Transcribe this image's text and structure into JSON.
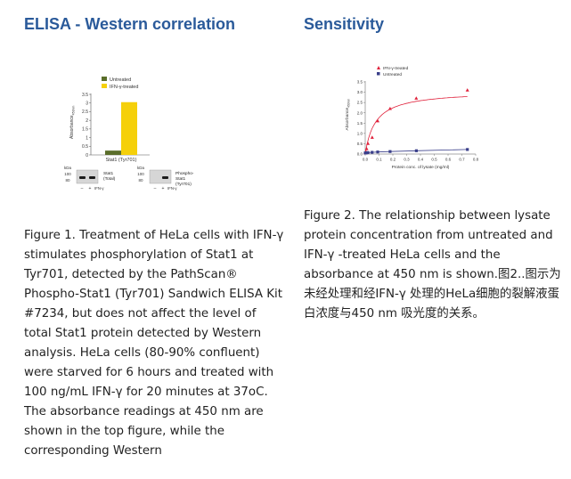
{
  "left": {
    "title": "ELISA - Western correlation",
    "caption": "Figure 1. Treatment of HeLa cells with IFN-γ stimulates phosphorylation of Stat1 at Tyr701, detected by the PathScan® Phospho-Stat1 (Tyr701) Sandwich ELISA Kit #7234, but does not affect the level of total Stat1 protein detected by Western analysis. HeLa cells (80-90% confluent) were starved for 6 hours and treated with 100 ng/mL IFN-γ for 20 minutes at 37oC. The absorbance readings at 450 nm are shown in the top figure, while the corresponding Western",
    "figure": {
      "ylabel_main": "Absorbance",
      "ylabel_sub": "450nm",
      "yticks": [
        "0",
        "0.5",
        "1",
        "1.5",
        "2",
        "2.5",
        "3",
        "3.5"
      ],
      "xlabel": "Stat1 (Tyr701)",
      "western": {
        "markers_left": [
          "kDa",
          "100",
          "80"
        ],
        "markers_right": [
          "kDa",
          "100",
          "80"
        ],
        "band_label_left": [
          "Stat1",
          "(Total)"
        ],
        "band_label_right": [
          "Phospho-",
          "Stat1",
          "(Tyr701)"
        ],
        "lane_signs": [
          "–",
          "+"
        ],
        "treatment": "IFN-γ"
      }
    }
  },
  "right": {
    "title": "Sensitivity",
    "caption": "Figure 2. The relationship between lysate protein concentration from untreated and IFN-γ -treated HeLa cells and the absorbance at 450 nm is shown.图2..图示为未经处理和经IFN-γ 处理的HeLa细胞的裂解液蛋白浓度与450 nm 吸光度的关系。",
    "figure": {
      "ylabel_main": "Absorbance",
      "ylabel_sub": "450nm",
      "xlabel": "Protein conc. of lysate (mg/ml)",
      "xticks": [
        "0.0",
        "0.1",
        "0.2",
        "0.3",
        "0.4",
        "0.5",
        "0.6",
        "0.7",
        "0.8"
      ],
      "yticks": [
        "0.0",
        "0.5",
        "1.0",
        "1.5",
        "2.0",
        "2.5",
        "3.0",
        "3.5"
      ]
    }
  },
  "chart_data": [
    {
      "type": "bar",
      "categories": [
        "Stat1 (Tyr701)"
      ],
      "series": [
        {
          "name": "Untreated",
          "values": [
            0.25
          ],
          "color": "#5a6e2a"
        },
        {
          "name": "IFN-γ-treated",
          "values": [
            3.05
          ],
          "color": "#f5d00a"
        }
      ],
      "ylabel": "Absorbance 450nm",
      "ylim": [
        0,
        3.5
      ],
      "legend": "top-left"
    },
    {
      "type": "scatter",
      "series": [
        {
          "name": "IFN-γ-treated",
          "color": "#e0203a",
          "marker": "triangle",
          "x": [
            0.0,
            0.005,
            0.01,
            0.02,
            0.05,
            0.09,
            0.18,
            0.37,
            0.74
          ],
          "y": [
            0.05,
            0.1,
            0.25,
            0.5,
            0.8,
            1.6,
            2.2,
            2.7,
            3.1
          ]
        },
        {
          "name": "Untreated",
          "color": "#3a3f8a",
          "marker": "square",
          "x": [
            0.0,
            0.005,
            0.01,
            0.02,
            0.05,
            0.09,
            0.18,
            0.37,
            0.74
          ],
          "y": [
            0.05,
            0.05,
            0.06,
            0.07,
            0.08,
            0.1,
            0.12,
            0.16,
            0.22
          ]
        }
      ],
      "xlabel": "Protein conc. of lysate (mg/ml)",
      "ylabel": "Absorbance 450nm",
      "xlim": [
        0,
        0.8
      ],
      "ylim": [
        0,
        3.5
      ],
      "legend": "top-left"
    }
  ]
}
